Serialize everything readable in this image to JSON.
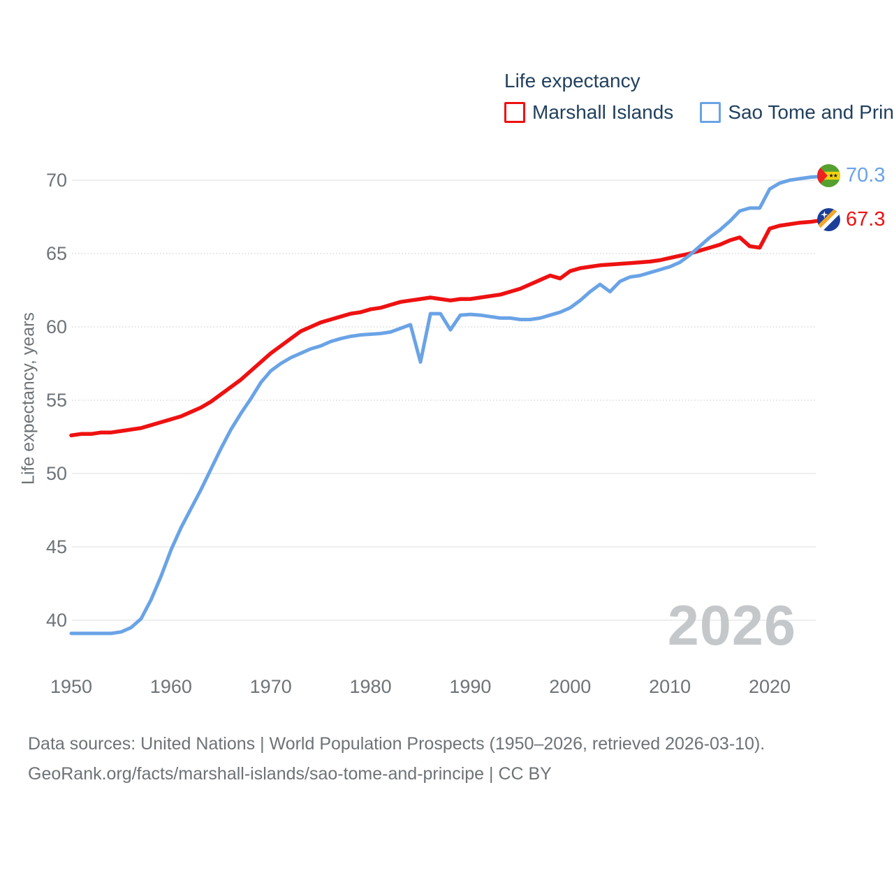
{
  "watermark": "2026",
  "footer": {
    "line1": "Data sources: United Nations | World Population Prospects (1950–2026, retrieved 2026-03-10).",
    "line2": "GeoRank.org/facts/marshall-islands/sao-tome-and-principe | CC BY"
  },
  "colors": {
    "marshall_islands_line": "#ee1111",
    "sao_tome_line": "#6aa3e6",
    "legend_text": "#21405e",
    "axis_text": "#6e7377",
    "watermark_text": "#c5c8ca",
    "gridline": "#e8e9ea"
  },
  "icons": {
    "end_of_line_markers": [
      "marshall-islands-flag-icon",
      "sao-tome-and-principe-flag-icon"
    ]
  },
  "chart_data": {
    "type": "line",
    "title": "Life expectancy",
    "xlabel": "",
    "ylabel": "Life expectancy, years",
    "x_ticks": [
      1950,
      1960,
      1970,
      1980,
      1990,
      2000,
      2010,
      2020
    ],
    "y_ticks": [
      40,
      45,
      50,
      55,
      60,
      65,
      70
    ],
    "xlim": [
      1950,
      2026
    ],
    "ylim": [
      38,
      71.5
    ],
    "grid": "horizontal",
    "legend_position": "top-right",
    "years": [
      1950,
      1951,
      1952,
      1953,
      1954,
      1955,
      1956,
      1957,
      1958,
      1959,
      1960,
      1961,
      1962,
      1963,
      1964,
      1965,
      1966,
      1967,
      1968,
      1969,
      1970,
      1971,
      1972,
      1973,
      1974,
      1975,
      1976,
      1977,
      1978,
      1979,
      1980,
      1981,
      1982,
      1983,
      1984,
      1985,
      1986,
      1987,
      1988,
      1989,
      1990,
      1991,
      1992,
      1993,
      1994,
      1995,
      1996,
      1997,
      1998,
      1999,
      2000,
      2001,
      2002,
      2003,
      2004,
      2005,
      2006,
      2007,
      2008,
      2009,
      2010,
      2011,
      2012,
      2013,
      2014,
      2015,
      2016,
      2017,
      2018,
      2019,
      2020,
      2021,
      2022,
      2023,
      2024,
      2025,
      2026
    ],
    "series": [
      {
        "name": "Marshall Islands",
        "color": "#ee1111",
        "end_label": "67.3",
        "flag": "marshall-islands",
        "values": [
          52.6,
          52.7,
          52.7,
          52.8,
          52.8,
          52.9,
          53.0,
          53.1,
          53.3,
          53.5,
          53.7,
          53.9,
          54.2,
          54.5,
          54.9,
          55.4,
          55.9,
          56.4,
          57.0,
          57.6,
          58.2,
          58.7,
          59.2,
          59.7,
          60.0,
          60.3,
          60.5,
          60.7,
          60.9,
          61.0,
          61.2,
          61.3,
          61.5,
          61.7,
          61.8,
          61.9,
          62.0,
          61.9,
          61.8,
          61.9,
          61.9,
          62.0,
          62.1,
          62.2,
          62.4,
          62.6,
          62.9,
          63.2,
          63.5,
          63.3,
          63.8,
          64.0,
          64.1,
          64.2,
          64.25,
          64.3,
          64.35,
          64.4,
          64.45,
          64.55,
          64.7,
          64.85,
          65.0,
          65.2,
          65.4,
          65.6,
          65.9,
          66.1,
          65.5,
          65.4,
          66.7,
          66.9,
          67.0,
          67.1,
          67.15,
          67.25,
          67.3
        ]
      },
      {
        "name": "Sao Tome and Principe",
        "color": "#6aa3e6",
        "end_label": "70.3",
        "flag": "sao-tome-and-principe",
        "values": [
          39.1,
          39.1,
          39.1,
          39.1,
          39.1,
          39.2,
          39.5,
          40.1,
          41.4,
          43.0,
          44.8,
          46.3,
          47.6,
          48.9,
          50.3,
          51.7,
          53.0,
          54.1,
          55.1,
          56.2,
          57.0,
          57.5,
          57.9,
          58.2,
          58.5,
          58.7,
          59.0,
          59.2,
          59.35,
          59.45,
          59.5,
          59.55,
          59.65,
          59.9,
          60.15,
          57.6,
          60.9,
          60.9,
          59.8,
          60.8,
          60.85,
          60.8,
          60.7,
          60.6,
          60.6,
          60.5,
          60.5,
          60.6,
          60.8,
          61.0,
          61.3,
          61.8,
          62.4,
          62.9,
          62.4,
          63.1,
          63.4,
          63.5,
          63.7,
          63.9,
          64.1,
          64.4,
          64.9,
          65.5,
          66.1,
          66.6,
          67.2,
          67.9,
          68.1,
          68.1,
          69.4,
          69.8,
          70.0,
          70.1,
          70.2,
          70.25,
          70.3
        ]
      }
    ]
  }
}
